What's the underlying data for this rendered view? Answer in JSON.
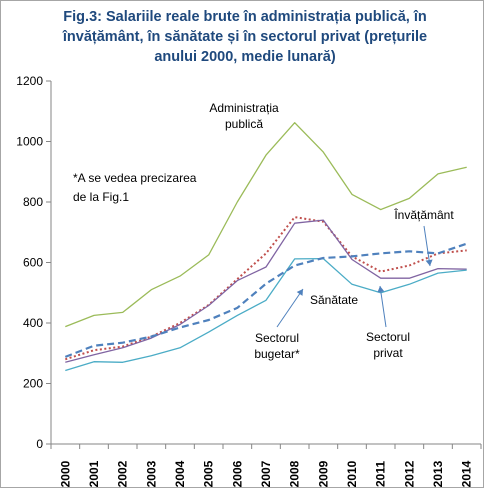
{
  "chart_data": {
    "type": "line",
    "title_lines": [
      "Fig.3: Salariile reale brute în administrația publică, în",
      "învățământ, în sănătate și în sectorul privat (prețurile",
      "anului 2000, medie lunară)"
    ],
    "x": [
      "2000",
      "2001",
      "2002",
      "2003",
      "2004",
      "2005",
      "2006",
      "2007",
      "2008",
      "2009",
      "2010",
      "2011",
      "2012",
      "2013",
      "2014"
    ],
    "ylim": [
      0,
      1200
    ],
    "yticks": [
      0,
      200,
      400,
      600,
      800,
      1000,
      1200
    ],
    "grid": false,
    "legend": "none",
    "note": [
      "*A se vedea precizarea",
      "de la Fig.1"
    ],
    "series": [
      {
        "name": "Administrația publică",
        "label_lines": [
          "Administrația",
          "publică"
        ],
        "color": "#9bbb59",
        "dash": "solid",
        "values": [
          388,
          425,
          435,
          510,
          555,
          625,
          800,
          955,
          1062,
          965,
          825,
          775,
          812,
          893,
          915
        ]
      },
      {
        "name": "Învățământ",
        "label_lines": [
          "Învățământ"
        ],
        "color": "#c0504d",
        "dash": "dotted",
        "values": [
          280,
          310,
          322,
          355,
          400,
          460,
          545,
          630,
          750,
          735,
          620,
          570,
          590,
          630,
          640
        ]
      },
      {
        "name": "Sectorul bugetar*",
        "label_lines": [
          "Sectorul",
          "bugetar*"
        ],
        "color": "#8064a2",
        "dash": "solid",
        "values": [
          270,
          295,
          318,
          350,
          395,
          458,
          540,
          585,
          730,
          740,
          610,
          548,
          548,
          580,
          578
        ]
      },
      {
        "name": "Sănătate",
        "label_lines": [
          "Sănătate"
        ],
        "color": "#4bacc6",
        "dash": "solid",
        "values": [
          243,
          272,
          270,
          292,
          318,
          370,
          425,
          475,
          612,
          613,
          528,
          500,
          528,
          565,
          575
        ]
      },
      {
        "name": "Sectorul privat",
        "label_lines": [
          "Sectorul",
          "privat"
        ],
        "color": "#4f81bd",
        "dash": "dashed",
        "values": [
          288,
          325,
          335,
          355,
          385,
          410,
          450,
          530,
          590,
          615,
          620,
          630,
          637,
          630,
          662
        ]
      }
    ]
  }
}
